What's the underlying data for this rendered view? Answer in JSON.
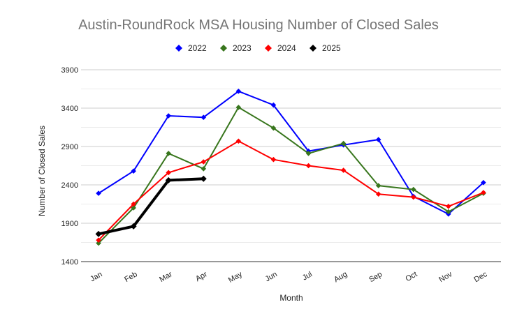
{
  "chart_data": {
    "type": "line",
    "title": "Austin-RoundRock MSA Housing Number of Closed Sales",
    "xlabel": "Month",
    "ylabel": "Number of Closed Sales",
    "ylim": [
      1400,
      3900
    ],
    "y_ticks": [
      1400,
      1900,
      2400,
      2900,
      3400,
      3900
    ],
    "grid": true,
    "legend_position": "top-center",
    "categories": [
      "Jan",
      "Feb",
      "Mar",
      "Apr",
      "May",
      "Jun",
      "Jul",
      "Aug",
      "Sep",
      "Oct",
      "Nov",
      "Dec"
    ],
    "series": [
      {
        "name": "2022",
        "color": "#0000ff",
        "line_weight": "normal",
        "values": [
          2290,
          2580,
          3300,
          3280,
          3620,
          3440,
          2840,
          2920,
          2990,
          2250,
          2020,
          2430
        ]
      },
      {
        "name": "2023",
        "color": "#38761d",
        "line_weight": "normal",
        "values": [
          1640,
          2100,
          2810,
          2610,
          3410,
          3140,
          2810,
          2940,
          2390,
          2340,
          2050,
          2290
        ]
      },
      {
        "name": "2024",
        "color": "#ff0000",
        "line_weight": "normal",
        "values": [
          1680,
          2150,
          2560,
          2700,
          2970,
          2730,
          2650,
          2590,
          2280,
          2240,
          2120,
          2300
        ]
      },
      {
        "name": "2025",
        "color": "#000000",
        "line_weight": "bold",
        "values": [
          1760,
          1860,
          2460,
          2480,
          null,
          null,
          null,
          null,
          null,
          null,
          null,
          null
        ]
      }
    ]
  }
}
